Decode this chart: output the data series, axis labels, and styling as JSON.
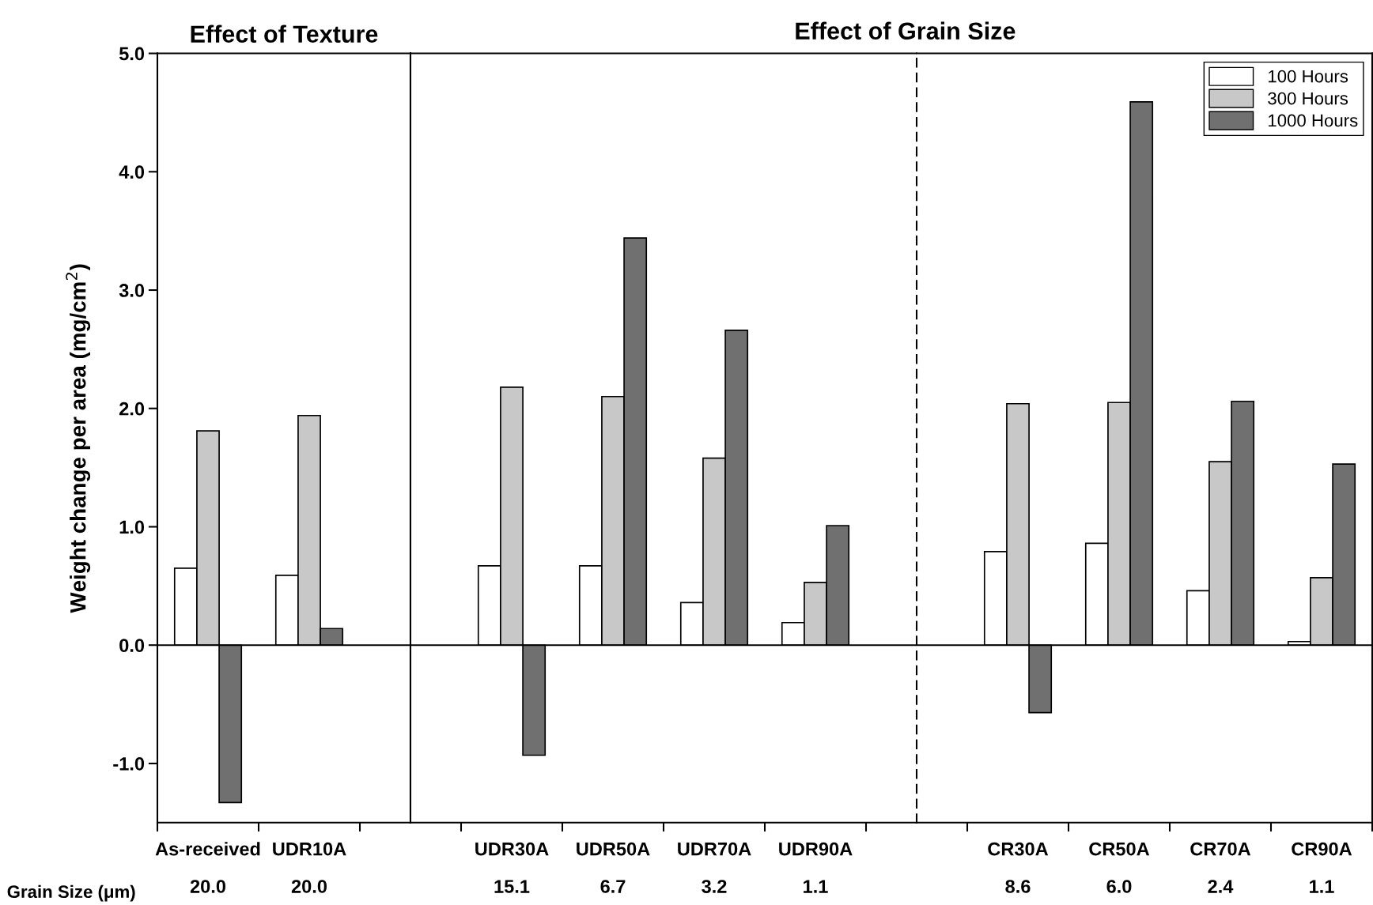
{
  "chart_data": [
    {
      "type": "bar",
      "title": "Effect of Texture",
      "ylabel": "Weight change per area (mg/cm$^{2}$)",
      "categories": [
        "As-received",
        "UDR10A"
      ],
      "series": [
        {
          "color": "#ffffff",
          "values": [
            0.65,
            0.59
          ]
        },
        {
          "color": "#c8c8c8",
          "values": [
            1.81,
            1.94
          ]
        },
        {
          "color": "#707070",
          "values": [
            -1.33,
            0.14
          ]
        }
      ],
      "ylim": [
        -1.5,
        5.0
      ],
      "yticks": [
        {
          "value": -1,
          "label": "-1.0"
        },
        {
          "value": 0,
          "label": "0.0"
        },
        {
          "value": 1,
          "label": "1.0"
        },
        {
          "value": 2,
          "label": "2.0"
        },
        {
          "value": 3,
          "label": "3.0"
        },
        {
          "value": 4,
          "label": "4.0"
        },
        {
          "value": 5,
          "label": "5.0"
        }
      ],
      "ref_lines": [
        {
          "axis": "y",
          "value": 0,
          "color": "#000000"
        }
      ],
      "annotations": [
        "Grain Size (μm)",
        "20.0",
        "20.0"
      ]
    },
    {
      "type": "bar",
      "title": "Effect of Grain Size",
      "categories": [
        "UDR30A",
        "UDR50A",
        "UDR70A",
        "UDR90A"
      ],
      "series": [
        {
          "color": "#ffffff",
          "values": [
            0.67,
            0.67,
            0.36,
            0.19
          ]
        },
        {
          "color": "#c8c8c8",
          "values": [
            2.18,
            2.1,
            1.58,
            0.53
          ]
        },
        {
          "color": "#707070",
          "values": [
            -0.93,
            3.44,
            2.66,
            1.01
          ]
        }
      ],
      "ylim": [
        -1.5,
        5.0
      ],
      "tick_labels": "x",
      "ref_lines": [
        {
          "axis": "y",
          "value": 0,
          "color": "#000000"
        }
      ],
      "annotations": [
        "15.1",
        "6.7",
        "3.2",
        "1.1"
      ]
    },
    {
      "type": "bar",
      "categories": [
        "CR30A",
        "CR50A",
        "CR70A",
        "CR90A"
      ],
      "series": [
        {
          "name": "100 Hours",
          "color": "#ffffff",
          "values": [
            0.79,
            0.86,
            0.46,
            0.03
          ]
        },
        {
          "name": "300 Hours",
          "color": "#c8c8c8",
          "values": [
            2.04,
            2.05,
            1.55,
            0.57
          ]
        },
        {
          "name": "1000 Hours",
          "color": "#707070",
          "values": [
            -0.57,
            4.59,
            2.06,
            1.53
          ]
        }
      ],
      "ylim": [
        -1.5,
        5.0
      ],
      "tick_labels": "x",
      "ref_lines": [
        {
          "axis": "y",
          "value": 0,
          "color": "#000000"
        }
      ],
      "annotations": [
        "8.6",
        "6.0",
        "2.4",
        "1.1"
      ],
      "legend": "top right"
    }
  ]
}
